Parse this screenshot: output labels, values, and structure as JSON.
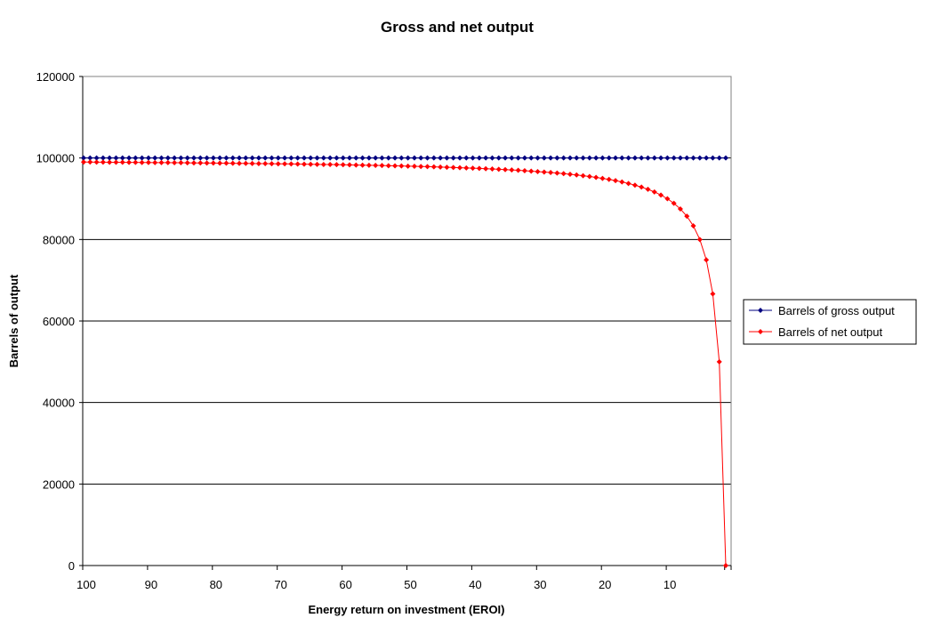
{
  "chart_data": {
    "type": "line",
    "title": "Gross and net output",
    "xlabel": "Energy return on investment (EROI)",
    "ylabel": "Barrels of output",
    "x_reversed": true,
    "xlim": [
      100,
      0
    ],
    "ylim": [
      0,
      120000
    ],
    "x_ticks": [
      100,
      90,
      80,
      70,
      60,
      50,
      40,
      30,
      20,
      10
    ],
    "y_ticks": [
      0,
      20000,
      40000,
      60000,
      80000,
      100000,
      120000
    ],
    "grid": "horizontal major",
    "legend_position": "right",
    "x": [
      100,
      99,
      98,
      97,
      96,
      95,
      94,
      93,
      92,
      91,
      90,
      89,
      88,
      87,
      86,
      85,
      84,
      83,
      82,
      81,
      80,
      79,
      78,
      77,
      76,
      75,
      74,
      73,
      72,
      71,
      70,
      69,
      68,
      67,
      66,
      65,
      64,
      63,
      62,
      61,
      60,
      59,
      58,
      57,
      56,
      55,
      54,
      53,
      52,
      51,
      50,
      49,
      48,
      47,
      46,
      45,
      44,
      43,
      42,
      41,
      40,
      39,
      38,
      37,
      36,
      35,
      34,
      33,
      32,
      31,
      30,
      29,
      28,
      27,
      26,
      25,
      24,
      23,
      22,
      21,
      20,
      19,
      18,
      17,
      16,
      15,
      14,
      13,
      12,
      11,
      10,
      9,
      8,
      7,
      6,
      5,
      4,
      3,
      2,
      1
    ],
    "series": [
      {
        "name": "Barrels of gross output",
        "color": "#000080",
        "marker": "diamond",
        "values": [
          100000,
          100000,
          100000,
          100000,
          100000,
          100000,
          100000,
          100000,
          100000,
          100000,
          100000,
          100000,
          100000,
          100000,
          100000,
          100000,
          100000,
          100000,
          100000,
          100000,
          100000,
          100000,
          100000,
          100000,
          100000,
          100000,
          100000,
          100000,
          100000,
          100000,
          100000,
          100000,
          100000,
          100000,
          100000,
          100000,
          100000,
          100000,
          100000,
          100000,
          100000,
          100000,
          100000,
          100000,
          100000,
          100000,
          100000,
          100000,
          100000,
          100000,
          100000,
          100000,
          100000,
          100000,
          100000,
          100000,
          100000,
          100000,
          100000,
          100000,
          100000,
          100000,
          100000,
          100000,
          100000,
          100000,
          100000,
          100000,
          100000,
          100000,
          100000,
          100000,
          100000,
          100000,
          100000,
          100000,
          100000,
          100000,
          100000,
          100000,
          100000,
          100000,
          100000,
          100000,
          100000,
          100000,
          100000,
          100000,
          100000,
          100000,
          100000,
          100000,
          100000,
          100000,
          100000,
          100000,
          100000,
          100000,
          100000,
          100000
        ]
      },
      {
        "name": "Barrels of net output",
        "color": "#ff0000",
        "marker": "diamond",
        "values": [
          99000,
          98990,
          98980,
          98969,
          98958,
          98947,
          98936,
          98925,
          98913,
          98901,
          98889,
          98876,
          98864,
          98851,
          98837,
          98824,
          98810,
          98795,
          98780,
          98765,
          98750,
          98734,
          98718,
          98701,
          98684,
          98667,
          98649,
          98630,
          98611,
          98592,
          98571,
          98551,
          98529,
          98507,
          98485,
          98462,
          98438,
          98413,
          98387,
          98361,
          98333,
          98305,
          98276,
          98246,
          98214,
          98182,
          98148,
          98113,
          98077,
          98039,
          98000,
          97959,
          97917,
          97872,
          97826,
          97778,
          97727,
          97674,
          97619,
          97561,
          97500,
          97436,
          97368,
          97297,
          97222,
          97143,
          97059,
          96970,
          96875,
          96774,
          96667,
          96552,
          96429,
          96296,
          96154,
          96000,
          95833,
          95652,
          95455,
          95238,
          95000,
          94737,
          94444,
          94118,
          93750,
          93333,
          92857,
          92308,
          91667,
          90909,
          90000,
          88889,
          87500,
          85714,
          83333,
          80000,
          75000,
          66667,
          50000,
          0
        ]
      }
    ]
  }
}
